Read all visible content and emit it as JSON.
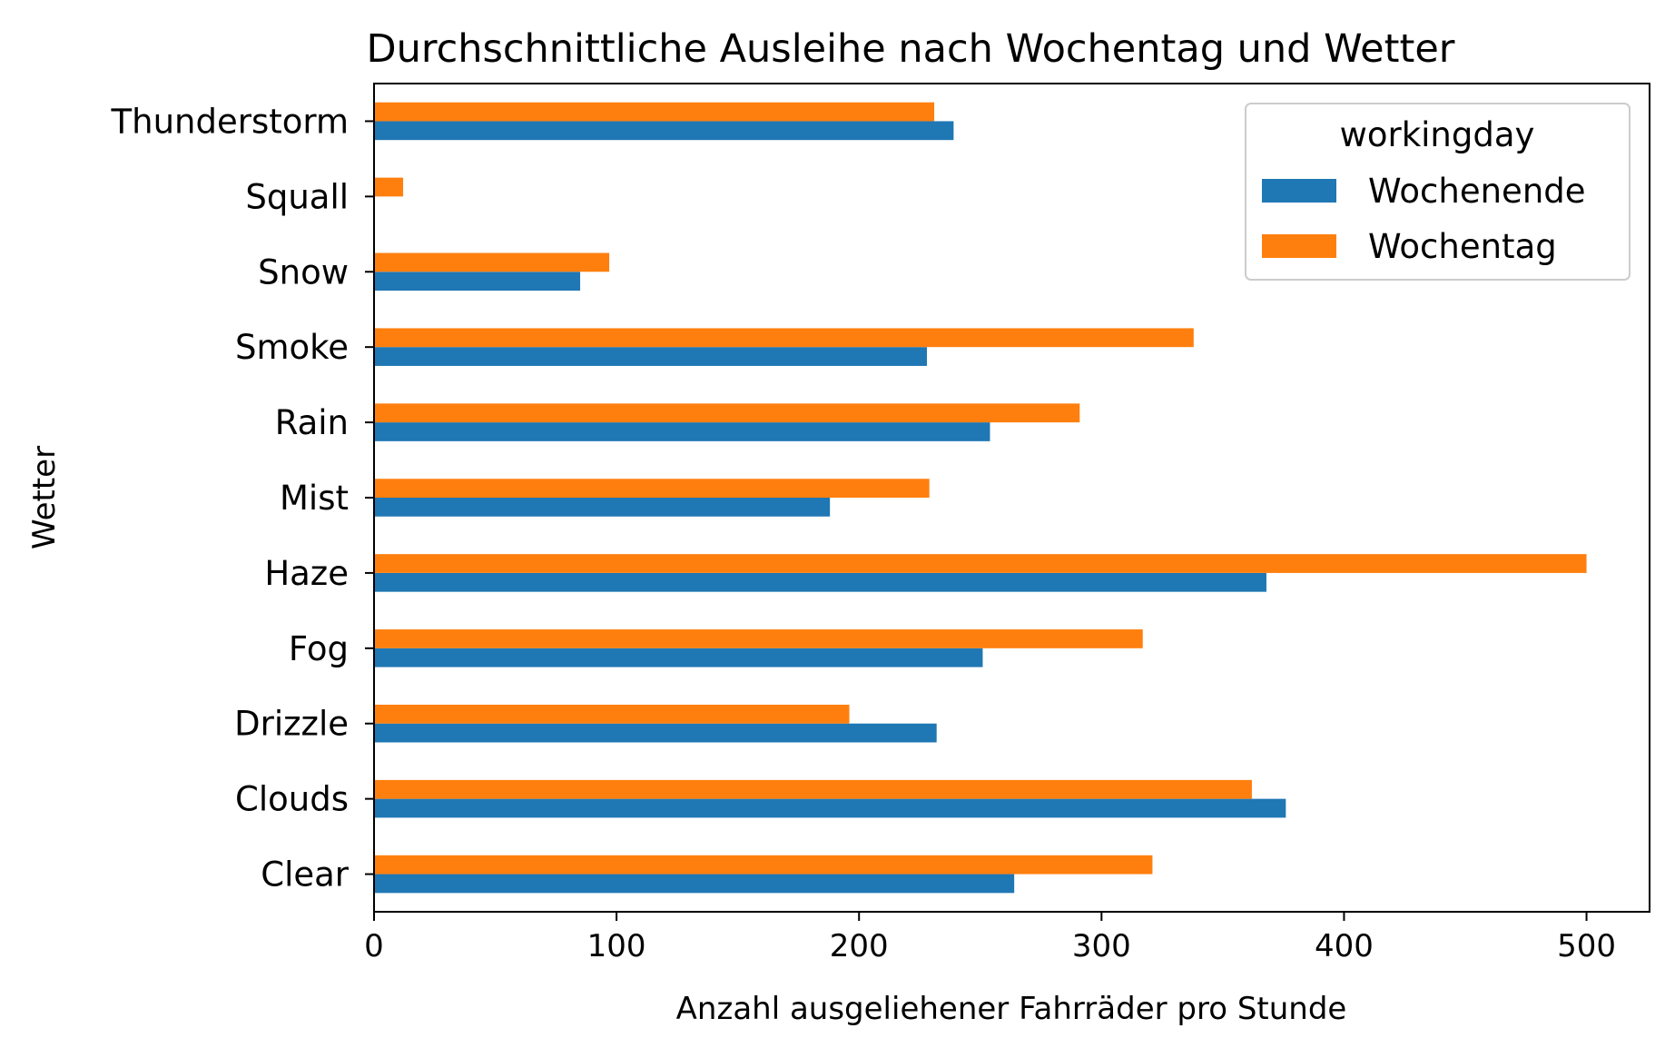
{
  "chart_data": {
    "type": "bar",
    "orientation": "horizontal",
    "title": "Durchschnittliche Ausleihe nach Wochentag und Wetter",
    "xlabel": "Anzahl ausgeliehener Fahrräder pro Stunde",
    "ylabel": "Wetter",
    "xlim": [
      0,
      526
    ],
    "xticks": [
      "0",
      "100",
      "200",
      "300",
      "400",
      "500"
    ],
    "categories": [
      "Clear",
      "Clouds",
      "Drizzle",
      "Fog",
      "Haze",
      "Mist",
      "Rain",
      "Smoke",
      "Snow",
      "Squall",
      "Thunderstorm"
    ],
    "series": [
      {
        "name": "Wochenende",
        "color": "#1f77b4",
        "values": [
          264,
          376,
          232,
          251,
          368,
          188,
          254,
          228,
          85,
          0,
          239
        ]
      },
      {
        "name": "Wochentag",
        "color": "#ff7f0e",
        "values": [
          321,
          362,
          196,
          317,
          500,
          229,
          291,
          338,
          97,
          12,
          231
        ]
      }
    ],
    "legend": {
      "title": "workingday",
      "placement": "top-right"
    },
    "grid": false
  }
}
